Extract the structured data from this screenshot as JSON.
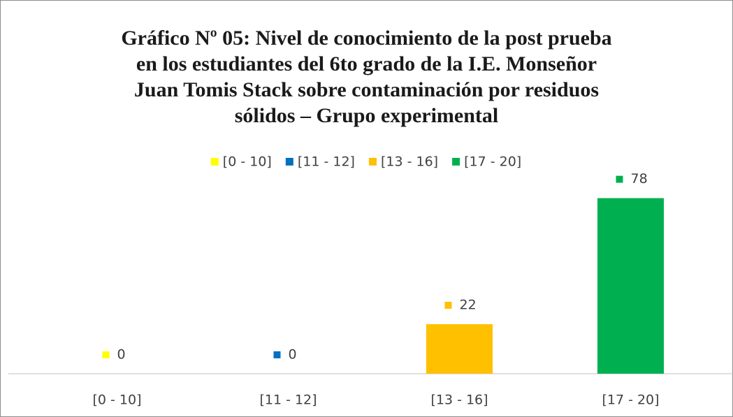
{
  "chart_data": {
    "type": "bar",
    "title": "Gráfico Nº 05: Nivel de conocimiento de la post prueba\nen los estudiantes del 6to grado de la I.E. Monseñor\nJuan Tomis Stack sobre contaminación por residuos\nsólidos – Grupo experimental",
    "categories": [
      "[0 - 10]",
      "[11 - 12]",
      "[13 - 16]",
      "[17 - 20]"
    ],
    "values": [
      0,
      0,
      22,
      78
    ],
    "colors": [
      "#ffff00",
      "#0070c0",
      "#ffc000",
      "#00b050"
    ],
    "ylim": [
      0,
      90
    ],
    "legend": "top"
  }
}
